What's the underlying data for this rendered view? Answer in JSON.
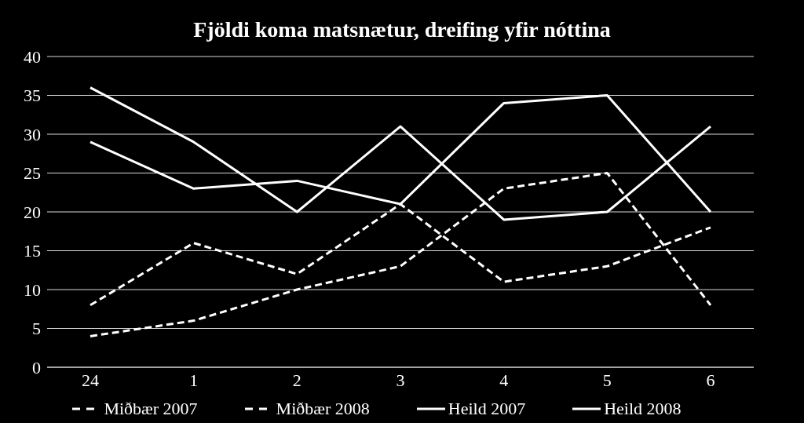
{
  "chart_data": {
    "type": "line",
    "title": "Fjöldi koma matsnætur, dreifing yfir nóttina",
    "categories": [
      "24",
      "1",
      "2",
      "3",
      "4",
      "5",
      "6"
    ],
    "series": [
      {
        "name": "Miðbær 2007",
        "color": "#ffffff",
        "line_style": "dashed",
        "values": [
          8,
          16,
          12,
          21,
          11,
          13,
          18
        ]
      },
      {
        "name": "Miðbær 2008",
        "color": "#ffffff",
        "line_style": "dashed",
        "values": [
          4,
          6,
          10,
          13,
          23,
          25,
          8
        ]
      },
      {
        "name": "Heild 2007",
        "color": "#ffffff",
        "line_style": "solid",
        "values": [
          29,
          23,
          24,
          21,
          34,
          35,
          20
        ]
      },
      {
        "name": "Heild 2008",
        "color": "#ffffff",
        "line_style": "solid",
        "values": [
          36,
          29,
          20,
          31,
          19,
          20,
          31
        ]
      }
    ],
    "ylim": [
      0,
      40
    ],
    "yticks": [
      0,
      5,
      10,
      15,
      20,
      25,
      30,
      35,
      40
    ],
    "grid": "y",
    "legend": "bottom",
    "marker": "none"
  }
}
